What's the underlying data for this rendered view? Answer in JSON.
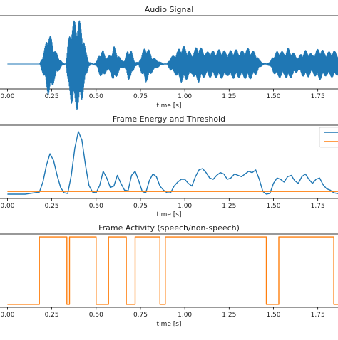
{
  "chart_data": [
    {
      "type": "line",
      "title": "Audio Signal",
      "xlabel": "time [s]",
      "ylabel": "",
      "xlim": [
        -0.05,
        1.88
      ],
      "xticks": [
        "0.00",
        "0.25",
        "0.50",
        "0.75",
        "1.00",
        "1.25",
        "1.50",
        "1.75"
      ],
      "grid": false,
      "series": [
        {
          "color": "#1f77b4",
          "envelope": {
            "x": [
              0.0,
              0.18,
              0.19,
              0.21,
              0.23,
              0.25,
              0.27,
              0.29,
              0.31,
              0.32,
              0.33,
              0.34,
              0.36,
              0.38,
              0.4,
              0.42,
              0.44,
              0.46,
              0.48,
              0.5,
              0.52,
              0.54,
              0.56,
              0.58,
              0.6,
              0.62,
              0.64,
              0.66,
              0.68,
              0.7,
              0.72,
              0.74,
              0.76,
              0.78,
              0.8,
              0.82,
              0.84,
              0.86,
              0.88,
              0.9,
              0.92,
              0.94,
              0.96,
              0.98,
              1.0,
              1.02,
              1.04,
              1.06,
              1.08,
              1.1,
              1.12,
              1.14,
              1.16,
              1.18,
              1.2,
              1.22,
              1.24,
              1.26,
              1.28,
              1.3,
              1.32,
              1.34,
              1.36,
              1.38,
              1.4,
              1.42,
              1.44,
              1.46,
              1.48,
              1.5,
              1.52,
              1.54,
              1.56,
              1.58,
              1.6,
              1.62,
              1.64,
              1.66,
              1.68,
              1.7,
              1.72,
              1.74,
              1.76,
              1.78,
              1.8,
              1.82,
              1.84,
              1.86,
              1.88
            ],
            "amplitude": [
              0.0,
              0.0,
              0.1,
              0.35,
              0.7,
              0.55,
              0.3,
              0.15,
              0.04,
              0.02,
              0.02,
              0.45,
              0.85,
              0.95,
              1.0,
              0.8,
              0.35,
              0.05,
              0.02,
              0.04,
              0.25,
              0.3,
              0.15,
              0.2,
              0.4,
              0.25,
              0.1,
              0.08,
              0.35,
              0.28,
              0.05,
              0.04,
              0.25,
              0.4,
              0.3,
              0.15,
              0.1,
              0.05,
              0.02,
              0.02,
              0.15,
              0.2,
              0.3,
              0.4,
              0.38,
              0.3,
              0.22,
              0.35,
              0.4,
              0.32,
              0.25,
              0.3,
              0.28,
              0.3,
              0.32,
              0.3,
              0.25,
              0.3,
              0.32,
              0.3,
              0.28,
              0.32,
              0.35,
              0.3,
              0.25,
              0.1,
              0.03,
              0.02,
              0.05,
              0.2,
              0.28,
              0.3,
              0.25,
              0.35,
              0.3,
              0.22,
              0.15,
              0.25,
              0.3,
              0.28,
              0.2,
              0.3,
              0.35,
              0.3,
              0.25,
              0.28,
              0.3,
              0.25,
              0.2
            ]
          }
        }
      ]
    },
    {
      "type": "line",
      "title": "Frame Energy and Threshold",
      "xlabel": "time [s]",
      "ylabel": "",
      "xlim": [
        -0.05,
        1.88
      ],
      "ylim": [
        0,
        100
      ],
      "xticks": [
        "0.00",
        "0.25",
        "0.50",
        "0.75",
        "1.00",
        "1.25",
        "1.50",
        "1.75"
      ],
      "legend": "top-right",
      "grid": false,
      "series": [
        {
          "color": "#1f77b4",
          "x": [
            0.0,
            0.1,
            0.18,
            0.2,
            0.22,
            0.24,
            0.26,
            0.28,
            0.3,
            0.32,
            0.34,
            0.36,
            0.38,
            0.4,
            0.42,
            0.44,
            0.46,
            0.48,
            0.5,
            0.52,
            0.54,
            0.56,
            0.58,
            0.6,
            0.62,
            0.64,
            0.66,
            0.68,
            0.7,
            0.72,
            0.74,
            0.76,
            0.78,
            0.8,
            0.82,
            0.84,
            0.86,
            0.88,
            0.9,
            0.92,
            0.94,
            0.96,
            0.98,
            1.0,
            1.02,
            1.04,
            1.06,
            1.08,
            1.1,
            1.12,
            1.14,
            1.16,
            1.18,
            1.2,
            1.22,
            1.24,
            1.26,
            1.28,
            1.3,
            1.32,
            1.34,
            1.36,
            1.38,
            1.4,
            1.42,
            1.44,
            1.46,
            1.48,
            1.5,
            1.52,
            1.54,
            1.56,
            1.58,
            1.6,
            1.62,
            1.64,
            1.66,
            1.68,
            1.7,
            1.72,
            1.74,
            1.76,
            1.78,
            1.8,
            1.82,
            1.84,
            1.86,
            1.88
          ],
          "y": [
            2,
            2,
            5,
            20,
            45,
            62,
            52,
            30,
            12,
            4,
            3,
            30,
            70,
            95,
            82,
            45,
            15,
            5,
            4,
            15,
            36,
            26,
            12,
            14,
            30,
            18,
            8,
            7,
            30,
            36,
            22,
            6,
            4,
            22,
            32,
            28,
            14,
            8,
            4,
            4,
            14,
            20,
            24,
            24,
            18,
            14,
            28,
            38,
            40,
            34,
            26,
            24,
            30,
            34,
            32,
            24,
            26,
            32,
            30,
            28,
            32,
            36,
            34,
            38,
            24,
            6,
            2,
            3,
            18,
            26,
            24,
            20,
            28,
            30,
            22,
            18,
            28,
            32,
            24,
            18,
            24,
            26,
            16,
            10,
            8,
            4,
            3,
            2
          ]
        },
        {
          "color": "#ff7f0e",
          "x": [
            0.0,
            1.88
          ],
          "y": [
            6,
            6
          ]
        }
      ]
    },
    {
      "type": "line",
      "title": "Frame Activity (speech/non-speech)",
      "xlabel": "time [s]",
      "ylabel": "",
      "xlim": [
        -0.05,
        1.88
      ],
      "ylim": [
        0,
        1
      ],
      "xticks": [
        "0.00",
        "0.25",
        "0.50",
        "0.75",
        "1.00",
        "1.25",
        "1.50",
        "1.75"
      ],
      "grid": false,
      "series": [
        {
          "color": "#ff7f0e",
          "x": [
            0.0,
            0.18,
            0.18,
            0.335,
            0.335,
            0.35,
            0.35,
            0.5,
            0.5,
            0.57,
            0.57,
            0.67,
            0.67,
            0.72,
            0.72,
            0.86,
            0.86,
            0.89,
            0.89,
            1.46,
            1.46,
            1.53,
            1.53,
            1.84,
            1.84,
            1.88
          ],
          "y": [
            0,
            0,
            1,
            1,
            0,
            0,
            1,
            1,
            0,
            0,
            1,
            1,
            0,
            0,
            1,
            1,
            0,
            0,
            1,
            1,
            0,
            0,
            1,
            1,
            0,
            0
          ]
        }
      ]
    }
  ]
}
